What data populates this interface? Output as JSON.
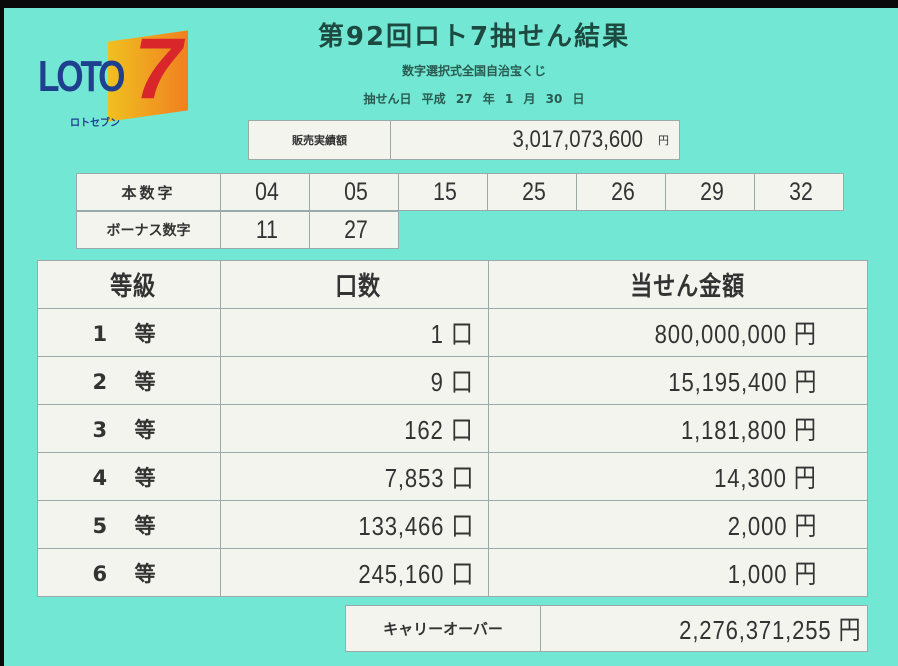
{
  "logo": {
    "text": "LOTO",
    "seven": "7",
    "kana": "ロトセブン"
  },
  "title": "第92回ロト7抽せん結果",
  "subtitle": "数字選択式全国自治宝くじ",
  "draw_date": "抽せん日 平成 27 年 1 月 30 日",
  "sales": {
    "label": "販売実績額",
    "value": "3,017,073,600",
    "unit": "円"
  },
  "main_numbers": {
    "label": "本数字",
    "values": [
      "04",
      "05",
      "15",
      "25",
      "26",
      "29",
      "32"
    ]
  },
  "bonus_numbers": {
    "label": "ボーナス数字",
    "values": [
      "11",
      "27"
    ]
  },
  "prize_table": {
    "headers": [
      "等級",
      "口数",
      "当せん金額"
    ],
    "rows": [
      {
        "grade": "1 等",
        "count": "1 口",
        "amount": "800,000,000 円"
      },
      {
        "grade": "2 等",
        "count": "9 口",
        "amount": "15,195,400 円"
      },
      {
        "grade": "3 等",
        "count": "162 口",
        "amount": "1,181,800 円"
      },
      {
        "grade": "4 等",
        "count": "7,853 口",
        "amount": "14,300 円"
      },
      {
        "grade": "5 等",
        "count": "133,466 口",
        "amount": "2,000 円"
      },
      {
        "grade": "6 等",
        "count": "245,160 口",
        "amount": "1,000 円"
      }
    ]
  },
  "carryover": {
    "label": "キャリーオーバー",
    "value": "2,276,371,255 円"
  },
  "colors": {
    "background": "#72e8d4",
    "cell": "#f3f4ee",
    "logo_blue": "#1f3f8f",
    "logo_red": "#d8262a",
    "logo_orange": "#f0a020"
  }
}
